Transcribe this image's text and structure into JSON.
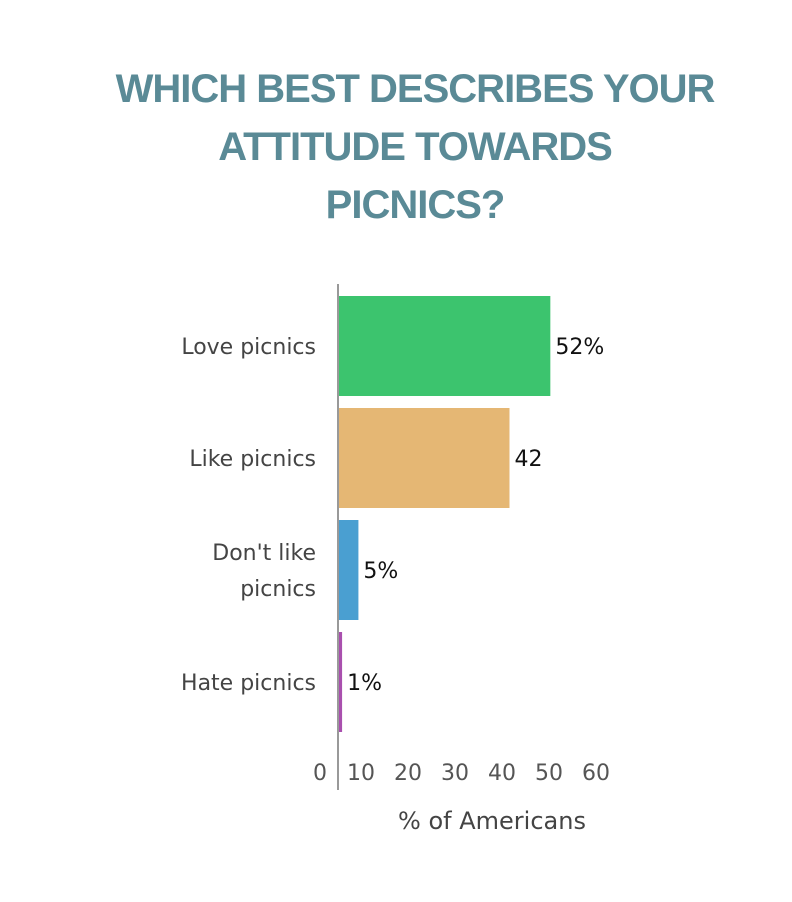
{
  "title_lines": [
    "WHICH BEST DESCRIBES YOUR",
    "ATTITUDE TOWARDS",
    "PICNICS?"
  ],
  "chart_data": {
    "type": "bar",
    "orientation": "horizontal",
    "title": "WHICH BEST DESCRIBES YOUR ATTITUDE TOWARDS PICNICS?",
    "categories": [
      "Love picnics",
      "Like picnics",
      "Don't like picnics",
      "Hate picnics"
    ],
    "category_lines": [
      [
        "Love picnics"
      ],
      [
        "Like picnics"
      ],
      [
        "Don't like",
        "picnics"
      ],
      [
        "Hate picnics"
      ]
    ],
    "values": [
      52,
      42,
      5,
      1
    ],
    "value_labels": [
      "52%",
      "42",
      "5%",
      "1%"
    ],
    "colors": [
      "#3cc46e",
      "#e5b774",
      "#4a9fd1",
      "#a94fae"
    ],
    "xlim": [
      0,
      60
    ],
    "xticks": [
      0,
      10,
      20,
      30,
      40,
      50,
      60
    ],
    "xlabel": "% of Americans",
    "ylabel": "",
    "grid": false,
    "legend": "none"
  }
}
